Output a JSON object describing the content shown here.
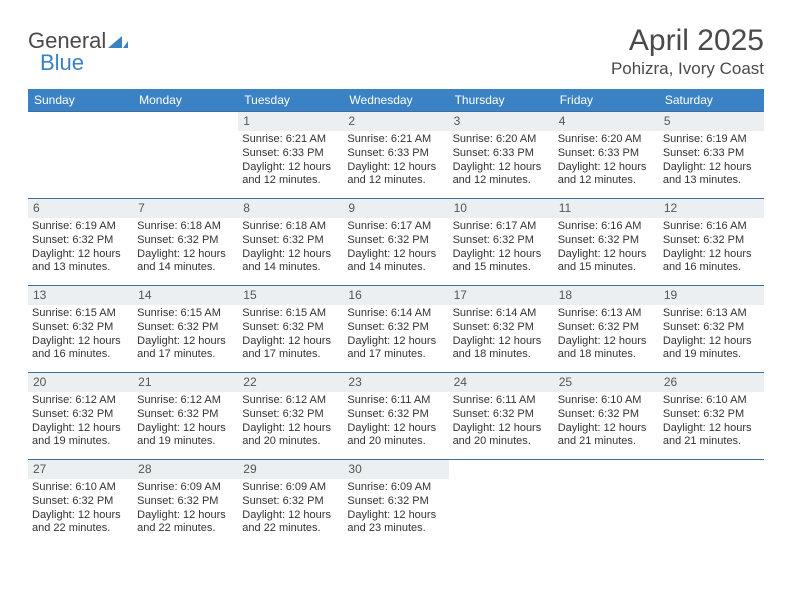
{
  "brand": {
    "part1": "General",
    "part2": "Blue"
  },
  "title": "April 2025",
  "location": "Pohizra, Ivory Coast",
  "colors": {
    "header_bg": "#3b82c4",
    "daynum_bg": "#eceff1",
    "week_border": "#3b6fa0",
    "text": "#333333",
    "brand_gray": "#4a4a4a"
  },
  "dow": [
    "Sunday",
    "Monday",
    "Tuesday",
    "Wednesday",
    "Thursday",
    "Friday",
    "Saturday"
  ],
  "weeks": [
    [
      {
        "n": "",
        "sunrise": "",
        "sunset": "",
        "daylight": ""
      },
      {
        "n": "",
        "sunrise": "",
        "sunset": "",
        "daylight": ""
      },
      {
        "n": "1",
        "sunrise": "Sunrise: 6:21 AM",
        "sunset": "Sunset: 6:33 PM",
        "daylight": "Daylight: 12 hours and 12 minutes."
      },
      {
        "n": "2",
        "sunrise": "Sunrise: 6:21 AM",
        "sunset": "Sunset: 6:33 PM",
        "daylight": "Daylight: 12 hours and 12 minutes."
      },
      {
        "n": "3",
        "sunrise": "Sunrise: 6:20 AM",
        "sunset": "Sunset: 6:33 PM",
        "daylight": "Daylight: 12 hours and 12 minutes."
      },
      {
        "n": "4",
        "sunrise": "Sunrise: 6:20 AM",
        "sunset": "Sunset: 6:33 PM",
        "daylight": "Daylight: 12 hours and 12 minutes."
      },
      {
        "n": "5",
        "sunrise": "Sunrise: 6:19 AM",
        "sunset": "Sunset: 6:33 PM",
        "daylight": "Daylight: 12 hours and 13 minutes."
      }
    ],
    [
      {
        "n": "6",
        "sunrise": "Sunrise: 6:19 AM",
        "sunset": "Sunset: 6:32 PM",
        "daylight": "Daylight: 12 hours and 13 minutes."
      },
      {
        "n": "7",
        "sunrise": "Sunrise: 6:18 AM",
        "sunset": "Sunset: 6:32 PM",
        "daylight": "Daylight: 12 hours and 14 minutes."
      },
      {
        "n": "8",
        "sunrise": "Sunrise: 6:18 AM",
        "sunset": "Sunset: 6:32 PM",
        "daylight": "Daylight: 12 hours and 14 minutes."
      },
      {
        "n": "9",
        "sunrise": "Sunrise: 6:17 AM",
        "sunset": "Sunset: 6:32 PM",
        "daylight": "Daylight: 12 hours and 14 minutes."
      },
      {
        "n": "10",
        "sunrise": "Sunrise: 6:17 AM",
        "sunset": "Sunset: 6:32 PM",
        "daylight": "Daylight: 12 hours and 15 minutes."
      },
      {
        "n": "11",
        "sunrise": "Sunrise: 6:16 AM",
        "sunset": "Sunset: 6:32 PM",
        "daylight": "Daylight: 12 hours and 15 minutes."
      },
      {
        "n": "12",
        "sunrise": "Sunrise: 6:16 AM",
        "sunset": "Sunset: 6:32 PM",
        "daylight": "Daylight: 12 hours and 16 minutes."
      }
    ],
    [
      {
        "n": "13",
        "sunrise": "Sunrise: 6:15 AM",
        "sunset": "Sunset: 6:32 PM",
        "daylight": "Daylight: 12 hours and 16 minutes."
      },
      {
        "n": "14",
        "sunrise": "Sunrise: 6:15 AM",
        "sunset": "Sunset: 6:32 PM",
        "daylight": "Daylight: 12 hours and 17 minutes."
      },
      {
        "n": "15",
        "sunrise": "Sunrise: 6:15 AM",
        "sunset": "Sunset: 6:32 PM",
        "daylight": "Daylight: 12 hours and 17 minutes."
      },
      {
        "n": "16",
        "sunrise": "Sunrise: 6:14 AM",
        "sunset": "Sunset: 6:32 PM",
        "daylight": "Daylight: 12 hours and 17 minutes."
      },
      {
        "n": "17",
        "sunrise": "Sunrise: 6:14 AM",
        "sunset": "Sunset: 6:32 PM",
        "daylight": "Daylight: 12 hours and 18 minutes."
      },
      {
        "n": "18",
        "sunrise": "Sunrise: 6:13 AM",
        "sunset": "Sunset: 6:32 PM",
        "daylight": "Daylight: 12 hours and 18 minutes."
      },
      {
        "n": "19",
        "sunrise": "Sunrise: 6:13 AM",
        "sunset": "Sunset: 6:32 PM",
        "daylight": "Daylight: 12 hours and 19 minutes."
      }
    ],
    [
      {
        "n": "20",
        "sunrise": "Sunrise: 6:12 AM",
        "sunset": "Sunset: 6:32 PM",
        "daylight": "Daylight: 12 hours and 19 minutes."
      },
      {
        "n": "21",
        "sunrise": "Sunrise: 6:12 AM",
        "sunset": "Sunset: 6:32 PM",
        "daylight": "Daylight: 12 hours and 19 minutes."
      },
      {
        "n": "22",
        "sunrise": "Sunrise: 6:12 AM",
        "sunset": "Sunset: 6:32 PM",
        "daylight": "Daylight: 12 hours and 20 minutes."
      },
      {
        "n": "23",
        "sunrise": "Sunrise: 6:11 AM",
        "sunset": "Sunset: 6:32 PM",
        "daylight": "Daylight: 12 hours and 20 minutes."
      },
      {
        "n": "24",
        "sunrise": "Sunrise: 6:11 AM",
        "sunset": "Sunset: 6:32 PM",
        "daylight": "Daylight: 12 hours and 20 minutes."
      },
      {
        "n": "25",
        "sunrise": "Sunrise: 6:10 AM",
        "sunset": "Sunset: 6:32 PM",
        "daylight": "Daylight: 12 hours and 21 minutes."
      },
      {
        "n": "26",
        "sunrise": "Sunrise: 6:10 AM",
        "sunset": "Sunset: 6:32 PM",
        "daylight": "Daylight: 12 hours and 21 minutes."
      }
    ],
    [
      {
        "n": "27",
        "sunrise": "Sunrise: 6:10 AM",
        "sunset": "Sunset: 6:32 PM",
        "daylight": "Daylight: 12 hours and 22 minutes."
      },
      {
        "n": "28",
        "sunrise": "Sunrise: 6:09 AM",
        "sunset": "Sunset: 6:32 PM",
        "daylight": "Daylight: 12 hours and 22 minutes."
      },
      {
        "n": "29",
        "sunrise": "Sunrise: 6:09 AM",
        "sunset": "Sunset: 6:32 PM",
        "daylight": "Daylight: 12 hours and 22 minutes."
      },
      {
        "n": "30",
        "sunrise": "Sunrise: 6:09 AM",
        "sunset": "Sunset: 6:32 PM",
        "daylight": "Daylight: 12 hours and 23 minutes."
      },
      {
        "n": "",
        "sunrise": "",
        "sunset": "",
        "daylight": ""
      },
      {
        "n": "",
        "sunrise": "",
        "sunset": "",
        "daylight": ""
      },
      {
        "n": "",
        "sunrise": "",
        "sunset": "",
        "daylight": ""
      }
    ]
  ]
}
